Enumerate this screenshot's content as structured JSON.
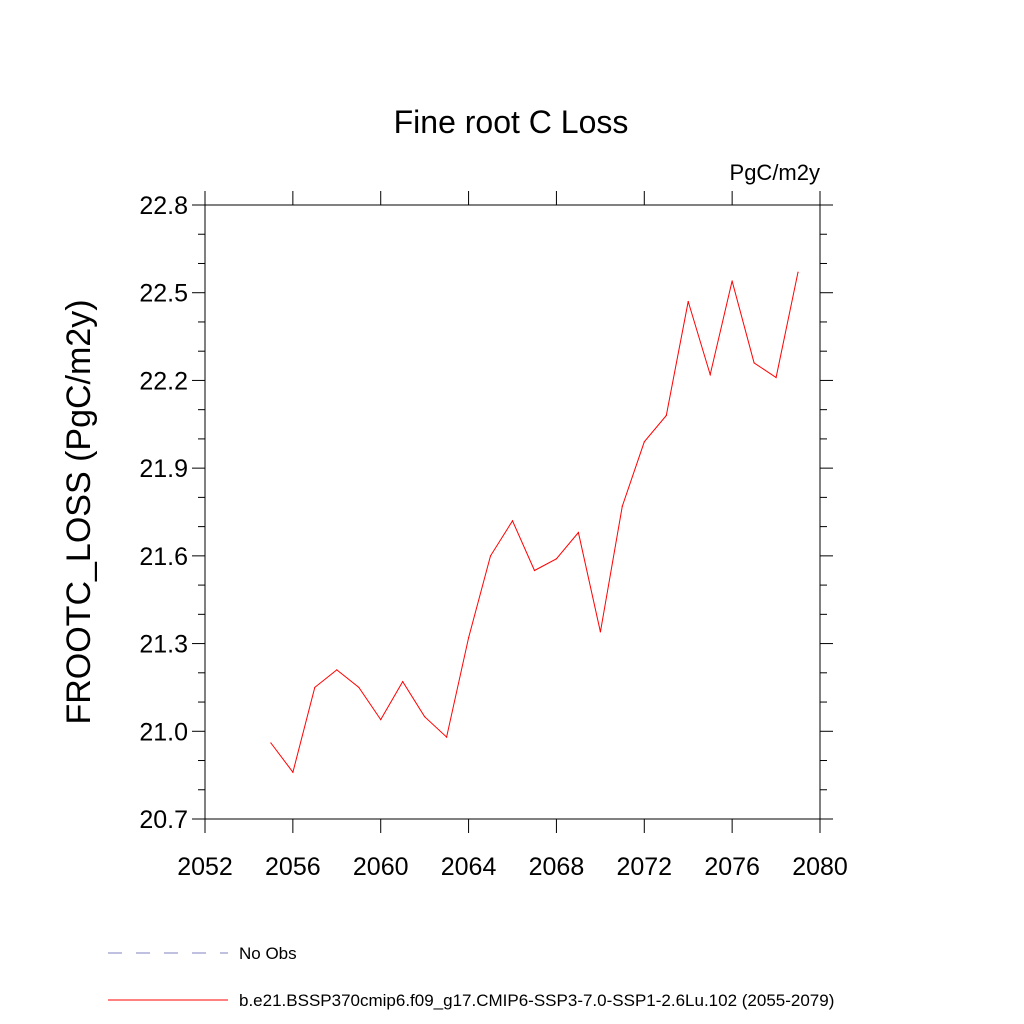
{
  "chart_data": {
    "type": "line",
    "title": "Fine root C Loss",
    "units_label": "PgC/m2y",
    "ylabel": "FROOTC_LOSS  (PgC/m2y)",
    "xlabel": "",
    "xlim": [
      2052,
      2080
    ],
    "ylim": [
      20.7,
      22.8
    ],
    "x_ticks": [
      2052,
      2056,
      2060,
      2064,
      2068,
      2072,
      2076,
      2080
    ],
    "y_ticks": [
      20.7,
      21.0,
      21.3,
      21.6,
      21.9,
      22.2,
      22.5,
      22.8
    ],
    "x_tick_labels": [
      "2052",
      "2056",
      "2060",
      "2064",
      "2068",
      "2072",
      "2076",
      "2080"
    ],
    "y_tick_labels": [
      "20.7",
      "21.0",
      "21.3",
      "21.6",
      "21.9",
      "22.2",
      "22.5",
      "22.8"
    ],
    "grid": false,
    "legend_placement": "bottom-left",
    "legend": [
      {
        "label": "No Obs",
        "style": "dashed",
        "color": "#8080c0"
      },
      {
        "label": "b.e21.BSSP370cmip6.f09_g17.CMIP6-SSP3-7.0-SSP1-2.6Lu.102 (2055-2079)",
        "style": "solid",
        "color": "#ff0000"
      }
    ],
    "series": [
      {
        "color": "#ff0000",
        "x": [
          2055,
          2056,
          2057,
          2058,
          2059,
          2060,
          2061,
          2062,
          2063,
          2064,
          2065,
          2066,
          2067,
          2068,
          2069,
          2070,
          2071,
          2072,
          2073,
          2074,
          2075,
          2076,
          2077,
          2078,
          2079
        ],
        "values": [
          20.96,
          20.86,
          21.15,
          21.21,
          21.15,
          21.04,
          21.17,
          21.05,
          20.98,
          21.32,
          21.6,
          21.72,
          21.55,
          21.59,
          21.68,
          21.34,
          21.77,
          21.99,
          22.08,
          22.47,
          22.22,
          22.54,
          22.26,
          22.21,
          22.57
        ]
      }
    ]
  }
}
